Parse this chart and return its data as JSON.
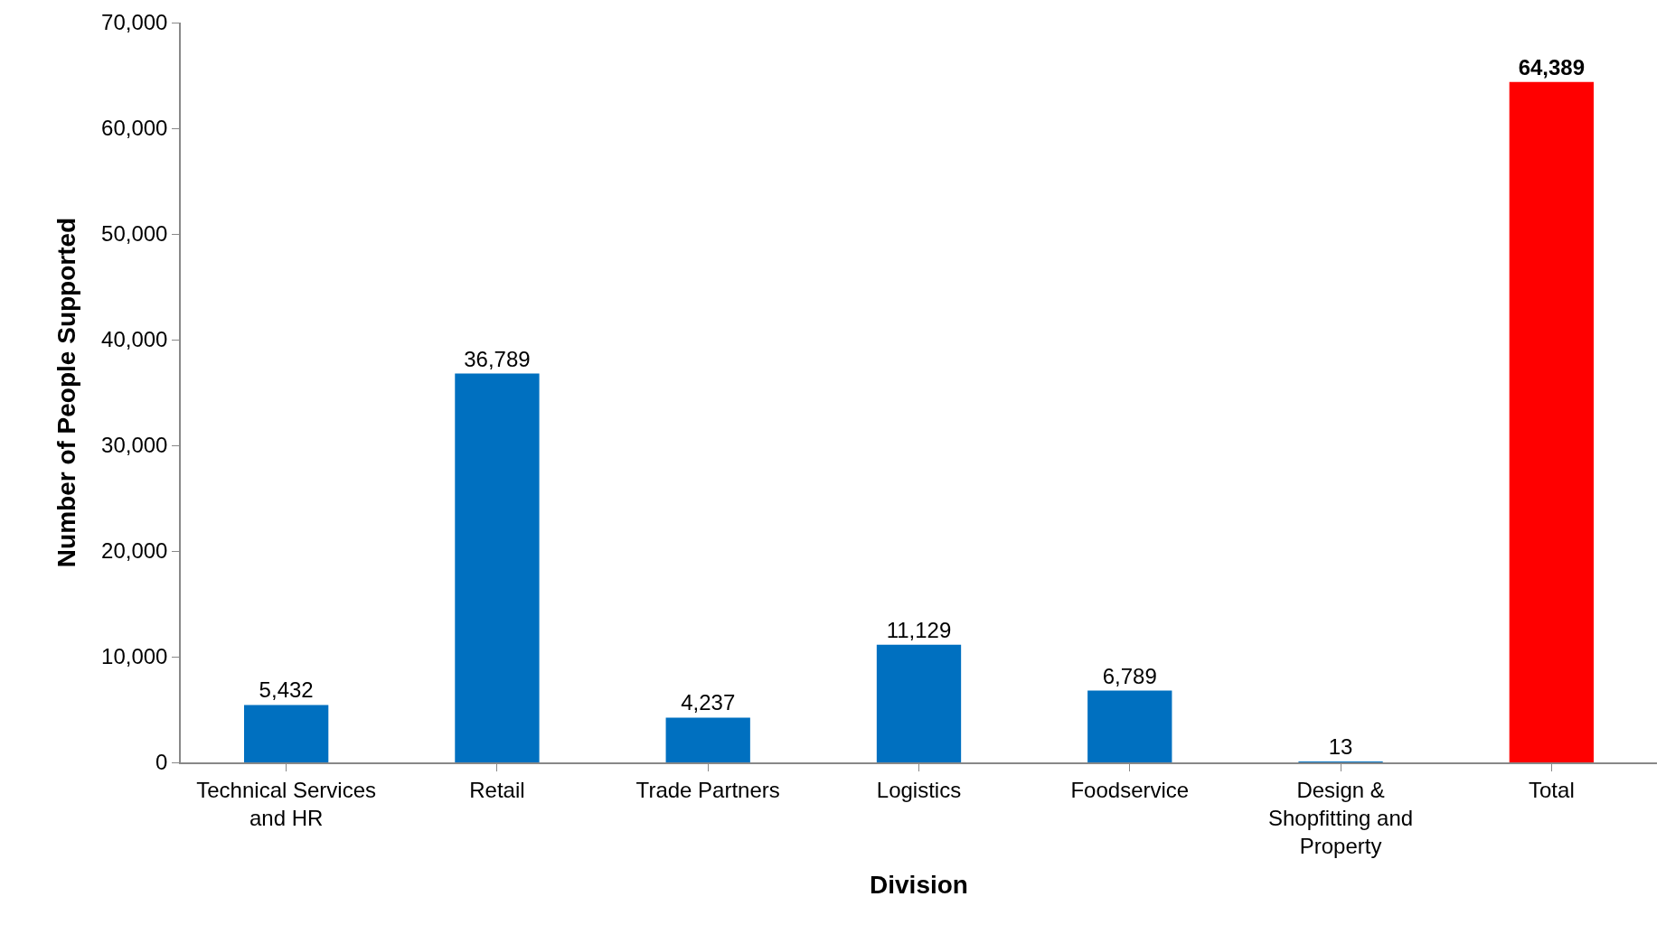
{
  "chart_data": {
    "type": "bar",
    "xlabel": "Division",
    "ylabel": "Number of People Supported",
    "categories": [
      "Technical Services and HR",
      "Retail",
      "Trade Partners",
      "Logistics",
      "Foodservice",
      "Design & Shopfitting and Property",
      "Total"
    ],
    "values": [
      5432,
      36789,
      4237,
      11129,
      6789,
      13,
      64389
    ],
    "colors": [
      "#0070c0",
      "#0070c0",
      "#0070c0",
      "#0070c0",
      "#0070c0",
      "#0070c0",
      "#ff0000"
    ],
    "value_labels": [
      "5,432",
      "36,789",
      "4,237",
      "11,129",
      "6,789",
      "13",
      "64,389"
    ],
    "ylim": [
      0,
      70000
    ],
    "yticks": [
      0,
      {
        "value": 10000,
        "label": "10,000"
      },
      {
        "value": 20000,
        "label": "20,000"
      },
      {
        "value": 30000,
        "label": "30,000"
      },
      {
        "value": 40000,
        "label": "40,000"
      },
      {
        "value": 50000,
        "label": "50,000"
      },
      {
        "value": 60000,
        "label": "60,000"
      },
      {
        "value": 70000,
        "label": "70,000"
      }
    ],
    "grid": false
  }
}
